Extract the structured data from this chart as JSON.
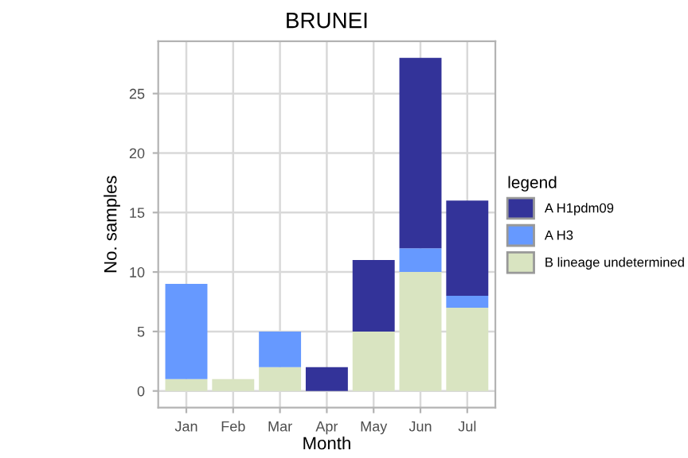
{
  "chart_data": {
    "type": "bar",
    "title": "BRUNEI",
    "xlabel": "Month",
    "ylabel": "No. samples",
    "legend_title": "legend",
    "categories": [
      "Jan",
      "Feb",
      "Mar",
      "Apr",
      "May",
      "Jun",
      "Jul"
    ],
    "stacked": true,
    "series": [
      {
        "name": "B lineage undetermined",
        "color": "#d9e4c1",
        "values": [
          1,
          1,
          2,
          0,
          5,
          10,
          7
        ]
      },
      {
        "name": "A H3",
        "color": "#6699ff",
        "values": [
          8,
          0,
          3,
          0,
          0,
          2,
          1
        ]
      },
      {
        "name": "A H1pdm09",
        "color": "#333399",
        "values": [
          0,
          0,
          0,
          2,
          6,
          16,
          8
        ]
      }
    ],
    "ylim": [
      -1.4,
      29.4
    ],
    "yticks": [
      0,
      5,
      10,
      15,
      20,
      25
    ],
    "grid": true,
    "legend": "right"
  }
}
